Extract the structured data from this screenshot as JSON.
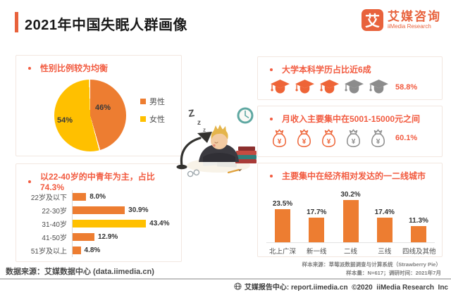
{
  "header": {
    "title": "2021年中国失眠人群画像"
  },
  "logo": {
    "mark": "艾",
    "name_cn": "艾媒咨询",
    "name_en": "iiMedia Research"
  },
  "cards": {
    "gender": {
      "title": "性别比例较为均衡"
    },
    "age": {
      "title": "以22-40岁的中青年为主，占比74.3%"
    },
    "education": {
      "title": "大学本科学历占比近6成",
      "value": "58.8%",
      "icons_total": 5,
      "icons_filled": 3,
      "icon": "graduation-cap"
    },
    "income": {
      "title": "月收入主要集中在5001-15000元之间",
      "value": "60.1%",
      "icons_total": 5,
      "icons_filled": 3,
      "icon": "money-bag",
      "currency_symbol": "¥"
    },
    "city": {
      "title": "主要集中在经济相对发达的一二线城市"
    }
  },
  "chart_data": [
    {
      "type": "pie",
      "title": "性别比例较为均衡",
      "labels": [
        "男性",
        "女性"
      ],
      "values": [
        46,
        54
      ],
      "value_labels": [
        "46%",
        "54%"
      ],
      "colors": [
        "#ED7D31",
        "#FFC000"
      ],
      "legend_position": "right",
      "start_angle": "top",
      "direction": "clockwise"
    },
    {
      "type": "bar",
      "orientation": "horizontal",
      "title": "以22-40岁的中青年为主，占比74.3%",
      "categories": [
        "22岁及以下",
        "22-30岁",
        "31-40岁",
        "41-50岁",
        "51岁及以上"
      ],
      "values": [
        8.0,
        30.9,
        43.4,
        12.9,
        4.8
      ],
      "value_labels": [
        "8.0%",
        "30.9%",
        "43.4%",
        "12.9%",
        "4.8%"
      ],
      "bar_colors": [
        "#ED7D31",
        "#ED7D31",
        "#FFC000",
        "#ED7D31",
        "#ED7D31"
      ],
      "xlim": [
        0,
        48
      ],
      "grid": false
    },
    {
      "type": "bar",
      "orientation": "vertical",
      "title": "主要集中在经济相对发达的一二线城市",
      "categories": [
        "北上广深",
        "新一线",
        "二线",
        "三线",
        "四线及其他"
      ],
      "values": [
        23.5,
        17.7,
        30.2,
        17.4,
        11.3
      ],
      "value_labels": [
        "23.5%",
        "17.7%",
        "30.2%",
        "17.4%",
        "11.3%"
      ],
      "bar_colors": [
        "#ED7D31",
        "#ED7D31",
        "#ED7D31",
        "#ED7D31",
        "#ED7D31"
      ],
      "ylim": [
        0,
        33
      ],
      "grid": false
    }
  ],
  "illustration": {
    "z1": "Z",
    "z2": "z",
    "z3": "z",
    "z4": "z"
  },
  "notes": {
    "line1": "样本来源：草莓派数据调查与计算系统（Strawberry Pie）",
    "line2": "样本量：N=617；调研时间：2021年7月"
  },
  "footer": {
    "source_left": "数据来源：艾媒数据中心 (data.iimedia.cn)",
    "report_right": "艾媒报告中心: report.iimedia.cn  ©2020  iiMedia Research  Inc"
  },
  "colors": {
    "orange": "#ED7D31",
    "yellow": "#FFC000",
    "accent_red": "#F25B40",
    "icon_orange": "#EE6437",
    "icon_gray": "#8C8C8C",
    "brand_orange": "#E8623C"
  }
}
